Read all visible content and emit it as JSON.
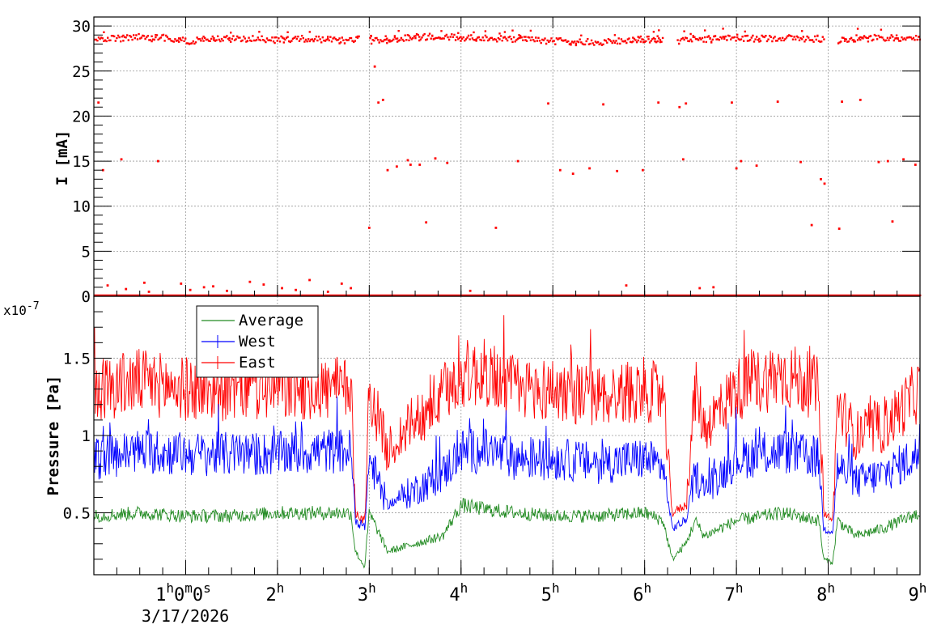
{
  "chart_data": [
    {
      "type": "scatter",
      "panel": "top",
      "ylabel": "I [mA]",
      "ylim": [
        0,
        31
      ],
      "yticks": [
        0,
        5,
        10,
        15,
        20,
        25,
        30
      ],
      "grid": true,
      "x_range_hours": [
        0,
        9
      ],
      "series": [
        {
          "name": "",
          "color": "#ff0000",
          "segments": [
            {
              "x": [
                0.0,
                0.25,
                0.5,
                0.75,
                1.0,
                1.25,
                1.5,
                1.75,
                2.0,
                2.25,
                2.5,
                2.75,
                2.88
              ],
              "y": [
                28.5,
                28.6,
                28.8,
                28.7,
                28.3,
                28.5,
                28.6,
                28.6,
                28.5,
                28.6,
                28.5,
                28.4,
                28.5
              ]
            },
            {
              "x": [
                3.0,
                3.25,
                3.5,
                3.75,
                4.0,
                4.25,
                4.5,
                4.75,
                5.0,
                5.25,
                5.5,
                5.75,
                6.0,
                6.2
              ],
              "y": [
                28.3,
                28.5,
                28.8,
                28.8,
                28.7,
                28.6,
                28.6,
                28.5,
                28.3,
                28.3,
                28.1,
                28.4,
                28.5,
                28.4
              ]
            },
            {
              "x": [
                6.35,
                6.5,
                6.75,
                7.0,
                7.25,
                7.5,
                7.75,
                7.95
              ],
              "y": [
                28.3,
                28.5,
                28.6,
                28.6,
                28.6,
                28.7,
                28.6,
                28.5
              ]
            },
            {
              "x": [
                8.1,
                8.25,
                8.5,
                8.75,
                9.0
              ],
              "y": [
                28.4,
                28.6,
                28.7,
                28.6,
                28.6
              ]
            }
          ],
          "outliers_x": [
            0.15,
            0.35,
            0.55,
            0.6,
            0.7,
            0.95,
            1.05,
            1.2,
            1.3,
            1.45,
            1.7,
            1.85,
            2.05,
            2.2,
            2.35,
            2.55,
            2.7,
            2.8,
            3.02,
            3.06,
            3.1,
            3.2,
            3.3,
            3.42,
            3.55,
            3.62,
            3.72,
            3.85,
            4.1,
            4.38,
            4.62,
            4.95,
            5.08,
            5.22,
            5.4,
            5.55,
            5.7,
            5.8,
            5.98,
            6.15,
            6.42,
            6.6,
            6.75,
            6.95,
            7.05,
            7.22,
            7.45,
            7.7,
            7.82,
            7.92,
            7.96,
            8.12,
            8.35,
            8.55,
            8.7,
            8.82,
            8.95,
            0.05,
            0.1,
            0.3,
            3.0,
            3.45,
            6.45,
            7.0,
            8.65,
            3.15,
            6.38,
            8.15
          ],
          "outliers_y": [
            1.2,
            0.8,
            1.5,
            0.5,
            15.0,
            1.4,
            0.7,
            1.0,
            1.1,
            0.6,
            1.6,
            1.3,
            0.9,
            0.7,
            1.8,
            0.5,
            1.4,
            0.9,
            28.9,
            25.5,
            21.5,
            14.0,
            14.4,
            15.1,
            14.6,
            8.2,
            15.3,
            14.8,
            0.6,
            7.6,
            15.0,
            21.4,
            14.0,
            13.6,
            14.2,
            21.3,
            13.9,
            1.2,
            14.0,
            21.5,
            15.2,
            0.9,
            1.0,
            21.5,
            15.0,
            14.5,
            21.6,
            14.9,
            7.9,
            13.0,
            12.5,
            7.5,
            21.8,
            14.9,
            8.3,
            15.2,
            14.6,
            21.5,
            14.0,
            15.2,
            7.6,
            14.6,
            21.4,
            14.2,
            15.0,
            21.8,
            21.0,
            21.6
          ]
        }
      ]
    },
    {
      "type": "line",
      "panel": "bottom",
      "ylabel": "Pressure [Pa]",
      "y_multiplier_label": "x10",
      "y_multiplier_exponent": "-7",
      "ylim": [
        0.1,
        1.9
      ],
      "yticks": [
        0.5,
        1,
        1.5
      ],
      "ytick_labels": [
        "0.5",
        "1",
        "1.5"
      ],
      "grid": true,
      "legend_position": "top-left",
      "x_range_hours": [
        0,
        9
      ],
      "xticks_hours": [
        1,
        2,
        3,
        4,
        5,
        6,
        7,
        8,
        9
      ],
      "xtick_labels": [
        {
          "h": "1",
          "rest": "0m0s"
        },
        {
          "h": "2",
          "rest": ""
        },
        {
          "h": "3",
          "rest": ""
        },
        {
          "h": "4",
          "rest": ""
        },
        {
          "h": "5",
          "rest": ""
        },
        {
          "h": "6",
          "rest": ""
        },
        {
          "h": "7",
          "rest": ""
        },
        {
          "h": "8",
          "rest": ""
        },
        {
          "h": "9",
          "rest": ""
        }
      ],
      "date_label": "3/17/2026",
      "series": [
        {
          "name": "Average",
          "color": "#228b22",
          "x": [
            0,
            0.5,
            1.0,
            1.5,
            2.0,
            2.5,
            2.8,
            2.85,
            2.95,
            3.0,
            3.2,
            3.5,
            3.8,
            4.0,
            4.3,
            4.6,
            5.0,
            5.5,
            6.0,
            6.2,
            6.3,
            6.45,
            6.55,
            6.65,
            7.0,
            7.5,
            7.9,
            7.95,
            8.05,
            8.1,
            8.3,
            8.6,
            9.0
          ],
          "y": [
            0.48,
            0.5,
            0.48,
            0.48,
            0.5,
            0.5,
            0.5,
            0.25,
            0.15,
            0.5,
            0.25,
            0.3,
            0.35,
            0.55,
            0.52,
            0.5,
            0.48,
            0.48,
            0.5,
            0.45,
            0.2,
            0.3,
            0.45,
            0.35,
            0.45,
            0.5,
            0.45,
            0.2,
            0.18,
            0.45,
            0.35,
            0.4,
            0.5
          ]
        },
        {
          "name": "West",
          "color": "#0000ff",
          "x": [
            0,
            0.5,
            1.0,
            1.5,
            2.0,
            2.5,
            2.8,
            2.85,
            2.95,
            3.0,
            3.2,
            3.5,
            3.8,
            4.0,
            4.3,
            4.6,
            5.0,
            5.5,
            6.0,
            6.2,
            6.3,
            6.45,
            6.55,
            6.65,
            7.0,
            7.5,
            7.9,
            7.95,
            8.05,
            8.1,
            8.3,
            8.6,
            9.0
          ],
          "y": [
            0.85,
            0.9,
            0.88,
            0.88,
            0.88,
            0.9,
            0.9,
            0.45,
            0.4,
            0.85,
            0.55,
            0.65,
            0.75,
            0.9,
            0.9,
            0.85,
            0.85,
            0.82,
            0.85,
            0.8,
            0.4,
            0.45,
            0.75,
            0.65,
            0.85,
            0.9,
            0.85,
            0.4,
            0.38,
            0.8,
            0.7,
            0.75,
            0.88
          ]
        },
        {
          "name": "East",
          "color": "#ff0000",
          "x": [
            0,
            0.5,
            1.0,
            1.5,
            2.0,
            2.5,
            2.8,
            2.85,
            2.95,
            3.0,
            3.2,
            3.5,
            3.8,
            4.0,
            4.3,
            4.6,
            5.0,
            5.5,
            6.0,
            6.2,
            6.3,
            6.45,
            6.55,
            6.65,
            7.0,
            7.5,
            7.9,
            7.95,
            8.05,
            8.1,
            8.3,
            8.6,
            9.0
          ],
          "y": [
            1.3,
            1.35,
            1.3,
            1.3,
            1.3,
            1.3,
            1.3,
            0.5,
            0.45,
            1.3,
            0.9,
            1.1,
            1.25,
            1.4,
            1.4,
            1.3,
            1.3,
            1.25,
            1.3,
            1.25,
            0.5,
            0.55,
            1.3,
            1.05,
            1.3,
            1.4,
            1.3,
            0.5,
            0.45,
            1.2,
            1.0,
            1.05,
            1.3
          ]
        }
      ]
    }
  ]
}
